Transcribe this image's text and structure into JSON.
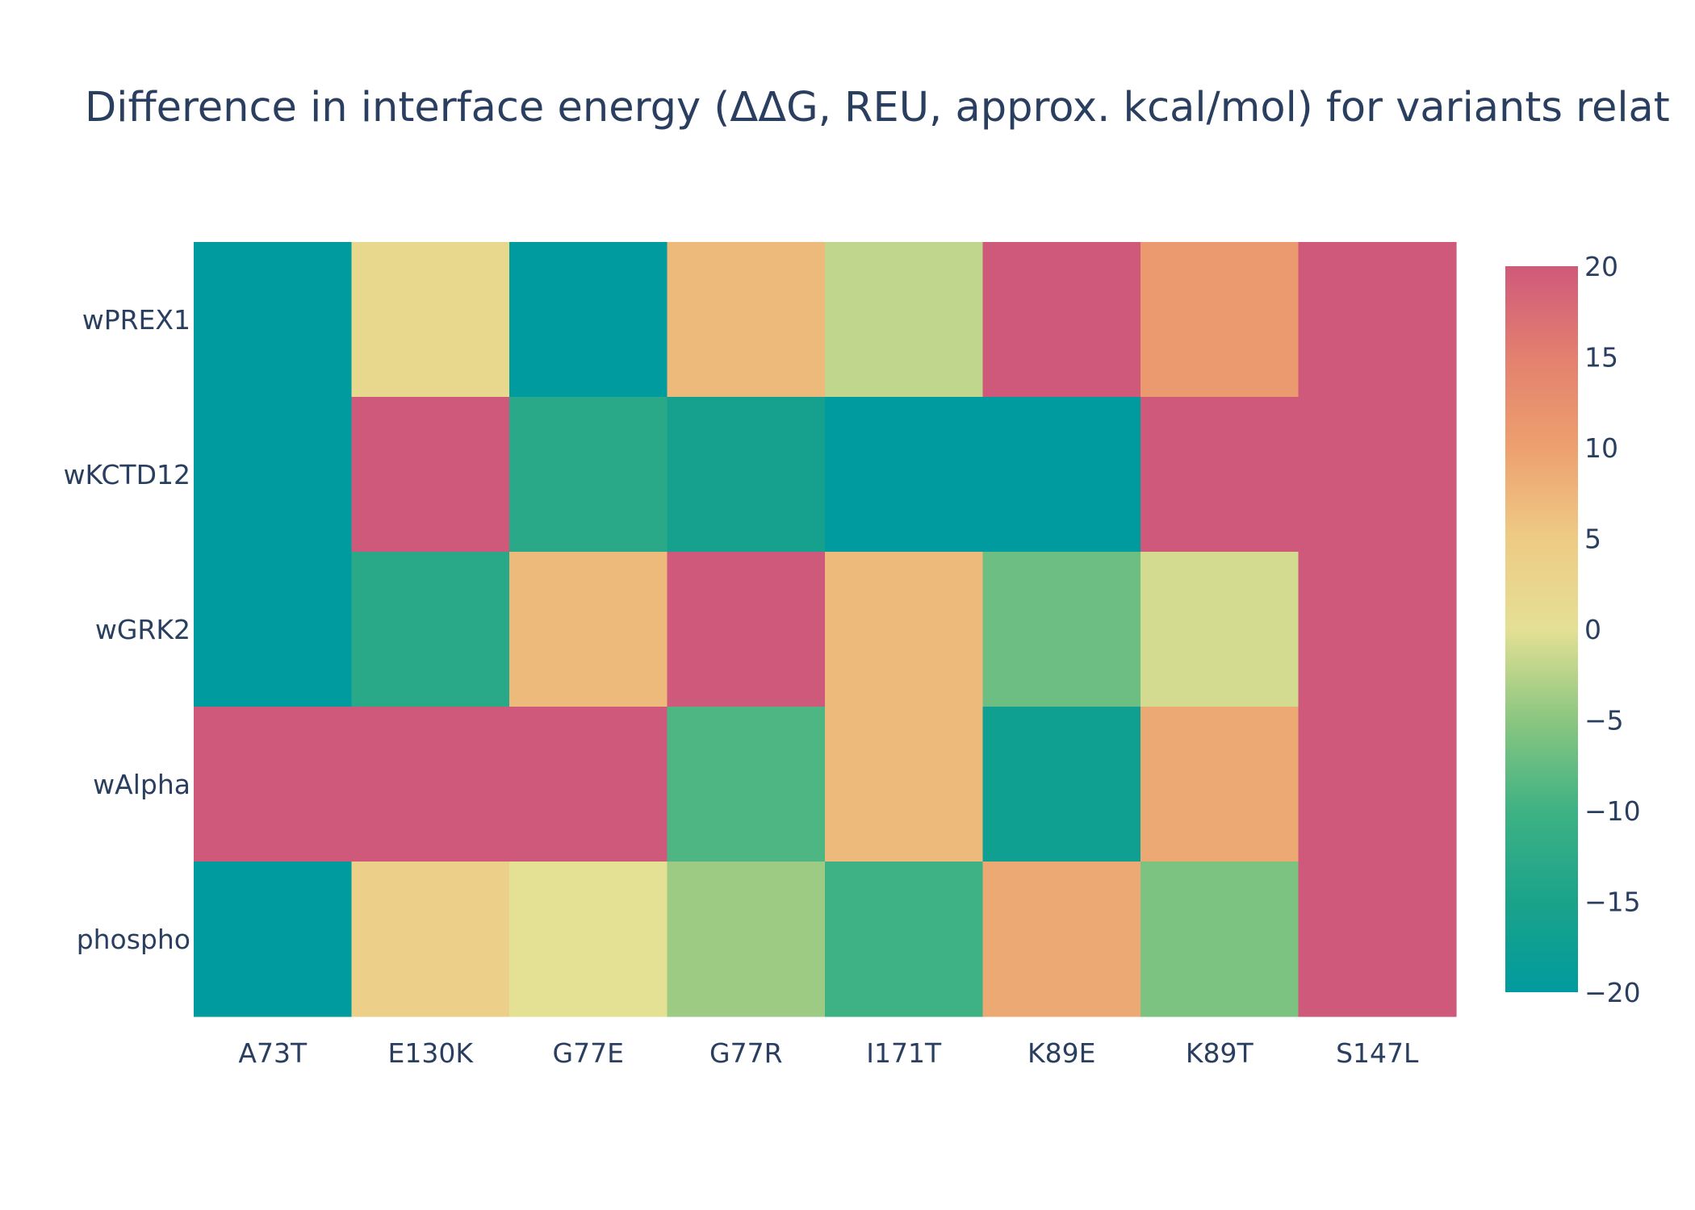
{
  "chart_data": {
    "type": "heatmap",
    "title": "Difference in interface energy (ΔΔG, REU, approx. kcal/mol) for variants relat",
    "xlabel": "",
    "ylabel": "",
    "x": [
      "A73T",
      "E130K",
      "G77E",
      "G77R",
      "I171T",
      "K89E",
      "K89T",
      "S147L"
    ],
    "y": [
      "wPREX1",
      "wKCTD12",
      "wGRK2",
      "wAlpha",
      "phospho"
    ],
    "z": [
      [
        -20,
        2,
        -20,
        7,
        -2,
        20,
        11,
        20
      ],
      [
        -20,
        20,
        -13,
        -16,
        -20,
        -20,
        20,
        20
      ],
      [
        -20,
        -13,
        7,
        20,
        7,
        -7,
        -1,
        20
      ],
      [
        20,
        20,
        20,
        -9,
        7,
        -17,
        9,
        20
      ],
      [
        -20,
        4,
        0,
        -4,
        -10,
        9,
        -6,
        20
      ]
    ],
    "zlim": [
      -20,
      20
    ],
    "colorscale": [
      [
        0.0,
        "#009B9E"
      ],
      [
        0.167,
        "#42B7B9"
      ],
      [
        0.333,
        "#A7D3D4"
      ],
      [
        0.5,
        "#E4E094"
      ],
      [
        0.667,
        "#E4C1D9"
      ],
      [
        0.833,
        "#D691C1"
      ],
      [
        1.0,
        "#C75DAB"
      ]
    ],
    "colorbar": {
      "ticks": [
        "20",
        "15",
        "10",
        "5",
        "0",
        "−5",
        "−10",
        "−15",
        "−20"
      ],
      "tick_values": [
        20,
        15,
        10,
        5,
        0,
        -5,
        -10,
        -15,
        -20
      ]
    },
    "grid": false
  }
}
